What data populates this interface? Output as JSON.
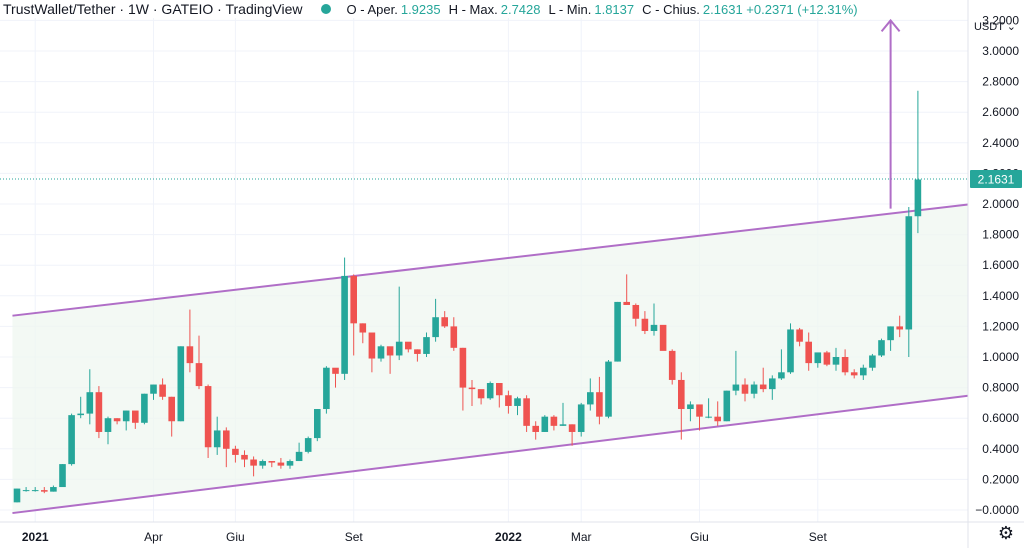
{
  "header": {
    "title": "TrustWallet/Tether · 1W · GATEIO · TradingView",
    "ohlc": [
      {
        "label": "O - Aper.",
        "value": "1.9235"
      },
      {
        "label": "H - Max.",
        "value": "2.7428"
      },
      {
        "label": "L - Min.",
        "value": "1.8137"
      },
      {
        "label": "C - Chius.",
        "value": "2.1631 +0.2371 (+12.31%)"
      }
    ]
  },
  "axis": {
    "unit": "USDT",
    "settings_icon": "gear-icon"
  },
  "colors": {
    "up": "#26a69a",
    "down": "#ef5350",
    "channel": "#b06ec7",
    "channel_fill": "#eef7ef",
    "price_line": "#26a69a"
  },
  "chart_data": {
    "type": "candlestick",
    "y_ticks": [
      "3.2000",
      "3.0000",
      "2.8000",
      "2.6000",
      "2.4000",
      "2.2000",
      "2.0000",
      "1.8000",
      "1.6000",
      "1.4000",
      "1.2000",
      "1.0000",
      "0.8000",
      "0.6000",
      "0.4000",
      "0.2000",
      "−0.0000"
    ],
    "x_ticks": [
      {
        "label": "2021",
        "week": 2
      },
      {
        "label": "Apr",
        "week": 15
      },
      {
        "label": "Giu",
        "week": 24
      },
      {
        "label": "Set",
        "week": 37
      },
      {
        "label": "2022",
        "week": 54
      },
      {
        "label": "Mar",
        "week": 62
      },
      {
        "label": "Giu",
        "week": 75
      },
      {
        "label": "Set",
        "week": 88
      }
    ],
    "ylim": [
      -0.05,
      3.25
    ],
    "last_price": "2.1631",
    "channel": {
      "upper": {
        "from": [
          -0.5,
          1.27
        ],
        "to": [
          105,
          2.0
        ]
      },
      "lower": {
        "from": [
          -0.5,
          -0.02
        ],
        "to": [
          105,
          0.75
        ]
      }
    },
    "arrow": {
      "week": 96,
      "from": 1.97,
      "to": 3.2
    },
    "candles": [
      [
        0.05,
        0.14,
        0.05,
        0.14
      ],
      [
        0.13,
        0.15,
        0.12,
        0.13
      ],
      [
        0.13,
        0.15,
        0.12,
        0.13
      ],
      [
        0.13,
        0.15,
        0.11,
        0.12
      ],
      [
        0.12,
        0.16,
        0.12,
        0.15
      ],
      [
        0.15,
        0.3,
        0.15,
        0.3
      ],
      [
        0.3,
        0.63,
        0.29,
        0.62
      ],
      [
        0.62,
        0.74,
        0.6,
        0.63
      ],
      [
        0.63,
        0.92,
        0.56,
        0.77
      ],
      [
        0.77,
        0.81,
        0.47,
        0.51
      ],
      [
        0.51,
        0.61,
        0.43,
        0.6
      ],
      [
        0.6,
        0.6,
        0.56,
        0.58
      ],
      [
        0.58,
        0.65,
        0.52,
        0.65
      ],
      [
        0.65,
        0.64,
        0.53,
        0.57
      ],
      [
        0.57,
        0.76,
        0.56,
        0.76
      ],
      [
        0.76,
        0.82,
        0.72,
        0.82
      ],
      [
        0.82,
        0.86,
        0.72,
        0.74
      ],
      [
        0.74,
        0.74,
        0.48,
        0.58
      ],
      [
        0.58,
        1.07,
        0.58,
        1.07
      ],
      [
        1.07,
        1.31,
        0.9,
        0.96
      ],
      [
        0.96,
        1.14,
        0.79,
        0.81
      ],
      [
        0.81,
        0.82,
        0.34,
        0.41
      ],
      [
        0.41,
        0.61,
        0.36,
        0.52
      ],
      [
        0.52,
        0.54,
        0.28,
        0.4
      ],
      [
        0.4,
        0.42,
        0.31,
        0.36
      ],
      [
        0.36,
        0.39,
        0.28,
        0.33
      ],
      [
        0.33,
        0.35,
        0.22,
        0.29
      ],
      [
        0.29,
        0.33,
        0.27,
        0.32
      ],
      [
        0.32,
        0.32,
        0.28,
        0.31
      ],
      [
        0.31,
        0.34,
        0.27,
        0.29
      ],
      [
        0.29,
        0.33,
        0.27,
        0.32
      ],
      [
        0.32,
        0.44,
        0.32,
        0.38
      ],
      [
        0.38,
        0.48,
        0.37,
        0.47
      ],
      [
        0.47,
        0.66,
        0.45,
        0.66
      ],
      [
        0.66,
        0.94,
        0.63,
        0.93
      ],
      [
        0.93,
        0.92,
        0.8,
        0.89
      ],
      [
        0.89,
        1.65,
        0.85,
        1.53
      ],
      [
        1.53,
        1.54,
        1.01,
        1.22
      ],
      [
        1.22,
        1.22,
        1.09,
        1.16
      ],
      [
        1.16,
        1.14,
        0.9,
        0.99
      ],
      [
        0.99,
        1.08,
        0.97,
        1.07
      ],
      [
        1.07,
        1.05,
        0.89,
        1.01
      ],
      [
        1.01,
        1.46,
        0.98,
        1.1
      ],
      [
        1.1,
        1.08,
        1.03,
        1.05
      ],
      [
        1.05,
        1.05,
        0.97,
        1.02
      ],
      [
        1.02,
        1.16,
        1.0,
        1.13
      ],
      [
        1.13,
        1.38,
        1.1,
        1.26
      ],
      [
        1.26,
        1.3,
        1.19,
        1.2
      ],
      [
        1.2,
        1.26,
        1.04,
        1.06
      ],
      [
        1.06,
        1.06,
        0.65,
        0.8
      ],
      [
        0.8,
        0.85,
        0.68,
        0.79
      ],
      [
        0.79,
        0.78,
        0.69,
        0.73
      ],
      [
        0.73,
        0.84,
        0.72,
        0.83
      ],
      [
        0.83,
        0.8,
        0.67,
        0.75
      ],
      [
        0.75,
        0.78,
        0.63,
        0.68
      ],
      [
        0.68,
        0.74,
        0.62,
        0.73
      ],
      [
        0.73,
        0.75,
        0.51,
        0.55
      ],
      [
        0.55,
        0.58,
        0.46,
        0.51
      ],
      [
        0.51,
        0.62,
        0.51,
        0.61
      ],
      [
        0.61,
        0.62,
        0.52,
        0.55
      ],
      [
        0.55,
        0.7,
        0.55,
        0.56
      ],
      [
        0.56,
        0.56,
        0.42,
        0.51
      ],
      [
        0.51,
        0.7,
        0.48,
        0.69
      ],
      [
        0.69,
        0.86,
        0.65,
        0.77
      ],
      [
        0.77,
        0.87,
        0.56,
        0.61
      ],
      [
        0.61,
        0.98,
        0.6,
        0.97
      ],
      [
        0.97,
        1.36,
        0.97,
        1.36
      ],
      [
        1.36,
        1.54,
        1.34,
        1.34
      ],
      [
        1.34,
        1.35,
        1.2,
        1.25
      ],
      [
        1.25,
        1.3,
        1.15,
        1.17
      ],
      [
        1.17,
        1.35,
        1.14,
        1.21
      ],
      [
        1.21,
        1.2,
        1.05,
        1.04
      ],
      [
        1.04,
        1.05,
        0.82,
        0.85
      ],
      [
        0.85,
        0.9,
        0.46,
        0.66
      ],
      [
        0.66,
        0.71,
        0.58,
        0.69
      ],
      [
        0.69,
        0.67,
        0.52,
        0.61
      ],
      [
        0.61,
        0.73,
        0.6,
        0.61
      ],
      [
        0.61,
        0.71,
        0.55,
        0.58
      ],
      [
        0.58,
        0.78,
        0.58,
        0.78
      ],
      [
        0.78,
        1.04,
        0.75,
        0.82
      ],
      [
        0.82,
        0.86,
        0.71,
        0.76
      ],
      [
        0.76,
        0.84,
        0.73,
        0.82
      ],
      [
        0.82,
        0.93,
        0.77,
        0.79
      ],
      [
        0.79,
        0.88,
        0.72,
        0.86
      ],
      [
        0.86,
        1.05,
        0.85,
        0.9
      ],
      [
        0.9,
        1.22,
        0.89,
        1.18
      ],
      [
        1.18,
        1.19,
        1.07,
        1.1
      ],
      [
        1.1,
        1.16,
        0.91,
        0.96
      ],
      [
        0.96,
        1.0,
        0.93,
        1.03
      ],
      [
        1.03,
        1.04,
        0.94,
        0.95
      ],
      [
        0.95,
        1.06,
        0.91,
        1.0
      ],
      [
        1.0,
        1.05,
        0.88,
        0.9
      ],
      [
        0.9,
        0.92,
        0.86,
        0.88
      ],
      [
        0.88,
        0.95,
        0.85,
        0.93
      ],
      [
        0.93,
        1.02,
        0.91,
        1.01
      ],
      [
        1.01,
        1.12,
        1.0,
        1.11
      ],
      [
        1.11,
        1.2,
        1.04,
        1.2
      ],
      [
        1.2,
        1.27,
        1.13,
        1.18
      ],
      [
        1.18,
        1.98,
        1.0,
        1.92
      ],
      [
        1.92,
        2.74,
        1.81,
        2.16
      ]
    ]
  }
}
